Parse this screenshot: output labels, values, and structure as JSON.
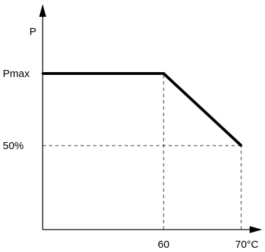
{
  "chart_data": {
    "type": "line",
    "xlabel": "°C",
    "ylabel": "P",
    "x": [
      0,
      60,
      70
    ],
    "y": [
      100,
      100,
      50
    ],
    "xlim": [
      0,
      70
    ],
    "ylim": [
      0,
      100
    ],
    "x_ticks": [
      {
        "value": 60,
        "label": "60"
      },
      {
        "value": 70,
        "label": "70°C"
      }
    ],
    "y_ticks": [
      {
        "value": 100,
        "label": "Pmax"
      },
      {
        "value": 50,
        "label": "50%"
      }
    ],
    "guides": [
      {
        "from": [
          60,
          0
        ],
        "to": [
          60,
          100
        ]
      },
      {
        "from": [
          70,
          0
        ],
        "to": [
          70,
          50
        ]
      },
      {
        "from": [
          0,
          50
        ],
        "to": [
          70,
          50
        ]
      }
    ],
    "grid": false,
    "line_color": "#000000"
  }
}
